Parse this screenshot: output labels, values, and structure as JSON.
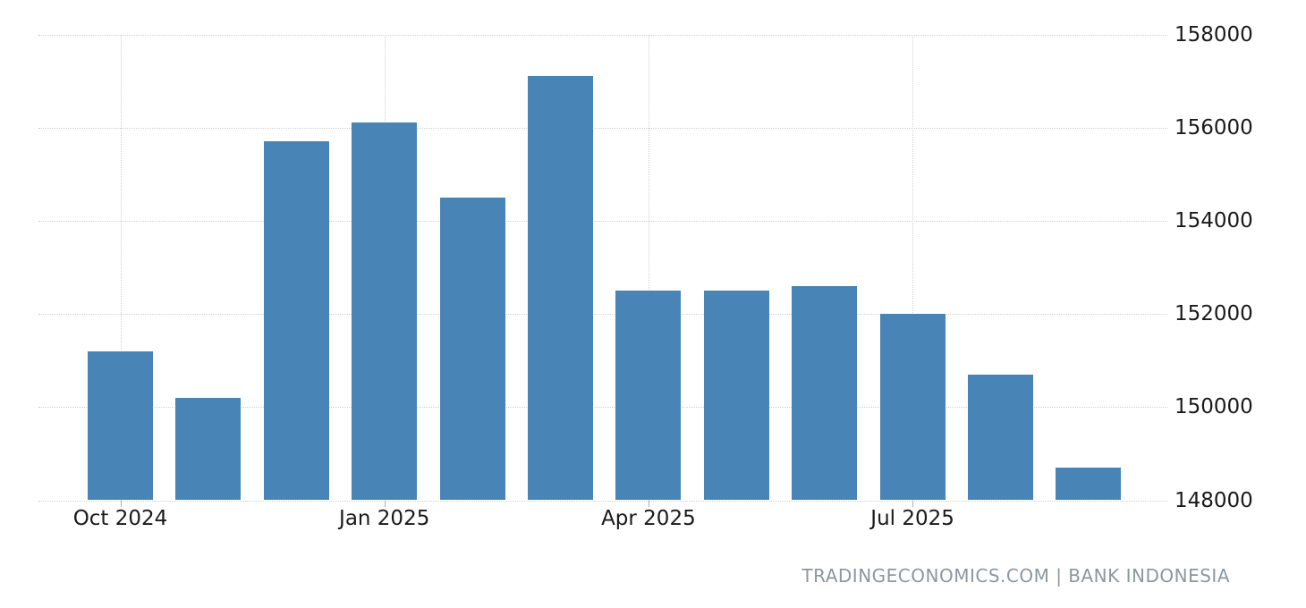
{
  "chart_data": {
    "type": "bar",
    "title": "",
    "xlabel": "",
    "ylabel": "",
    "categories": [
      "Oct 2024",
      "Nov 2024",
      "Dec 2024",
      "Jan 2025",
      "Feb 2025",
      "Mar 2025",
      "Apr 2025",
      "May 2025",
      "Jun 2025",
      "Jul 2025",
      "Aug 2025",
      "Sep 2025"
    ],
    "values": [
      151200,
      150200,
      155700,
      156100,
      154500,
      157100,
      152500,
      152500,
      152600,
      152000,
      150700,
      148700
    ],
    "ylim": [
      148000,
      158000
    ],
    "y_ticks": [
      148000,
      150000,
      152000,
      154000,
      156000,
      158000
    ],
    "x_tick_indices": [
      0,
      3,
      6,
      9
    ],
    "x_tick_labels": [
      "Oct 2024",
      "Jan 2025",
      "Apr 2025",
      "Jul 2025"
    ],
    "grid": true,
    "legend": false,
    "bar_color": "#4884b6",
    "gridline_color": "#cfcfcf"
  },
  "attribution": "TRADINGECONOMICS.COM | BANK INDONESIA"
}
